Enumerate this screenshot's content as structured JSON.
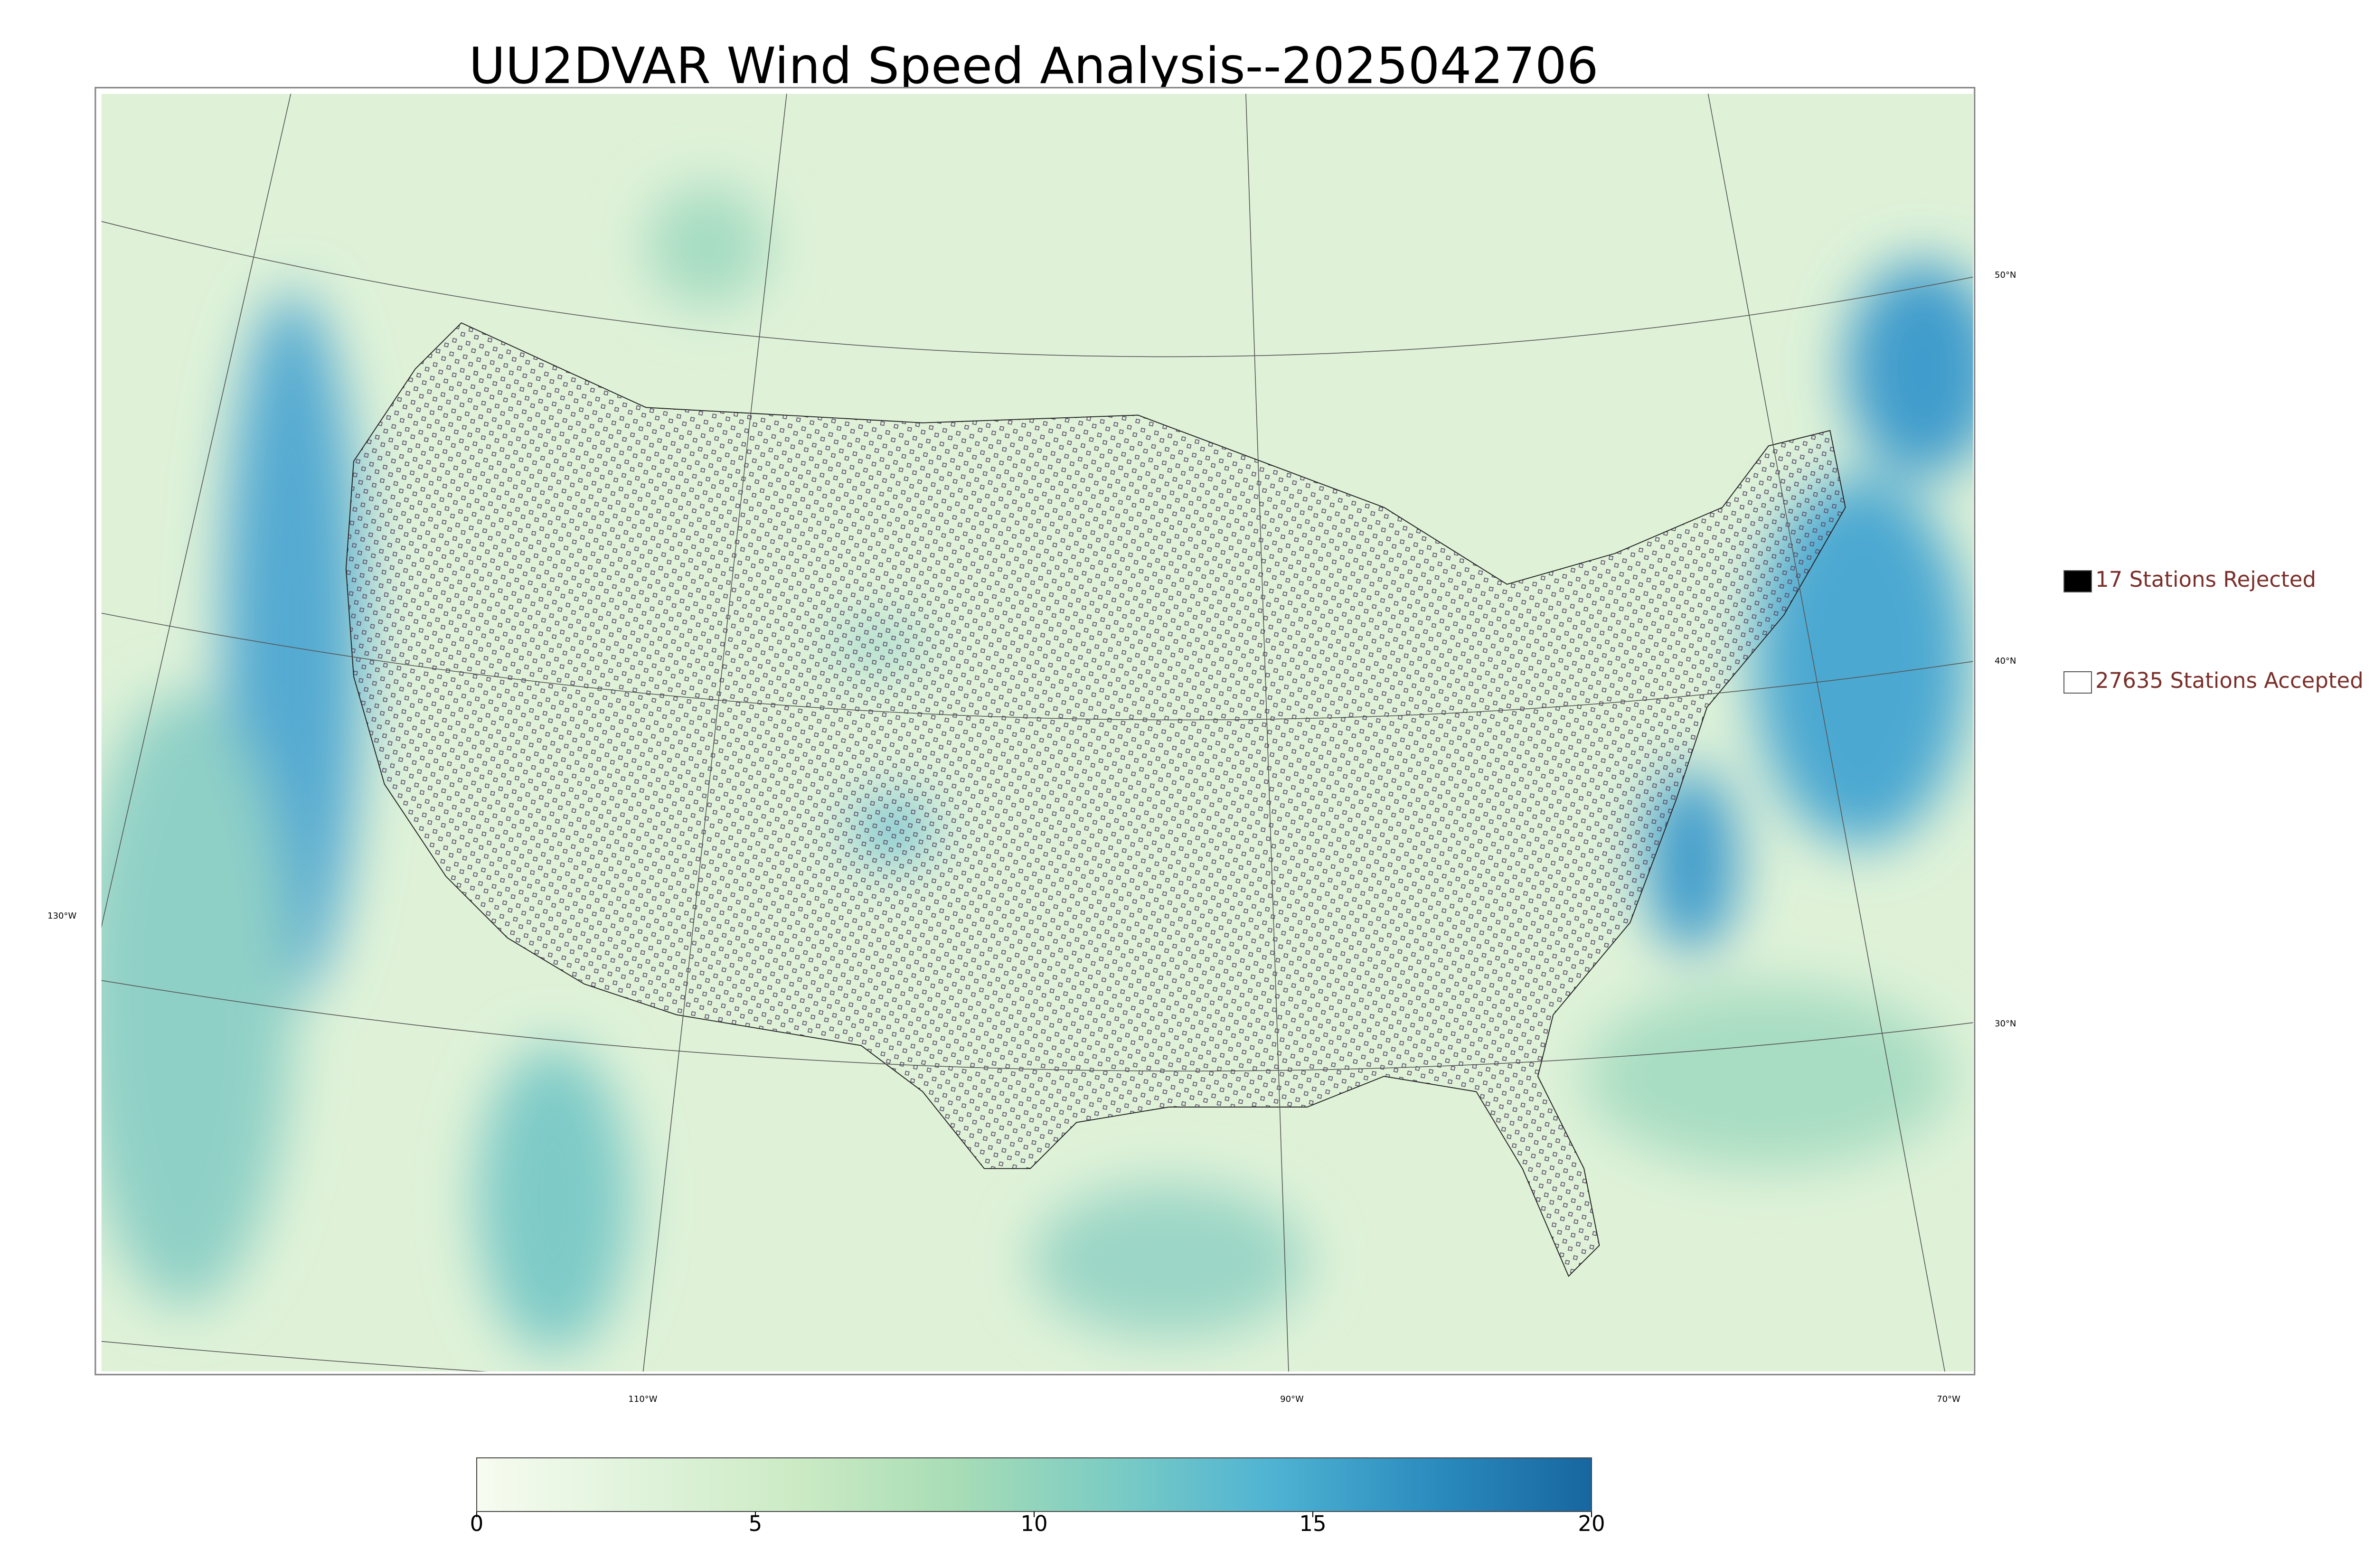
{
  "title": "UU2DVAR Wind Speed Analysis--2025042706",
  "legend": [
    {
      "label": "17 Stations Rejected",
      "color": "#000000"
    },
    {
      "label": "27635 Stations Accepted",
      "color": "#ffffff"
    }
  ],
  "map": {
    "lat_labels": [
      "50°N",
      "40°N",
      "30°N"
    ],
    "lon_labels": [
      "130°W",
      "110°W",
      "90°W",
      "70°W"
    ]
  },
  "colorbar": {
    "lim": [
      0,
      20
    ],
    "ticks": [
      0,
      5,
      10,
      15,
      20
    ],
    "colors": [
      "#f7fcf0",
      "#e0f3db",
      "#ccebc5",
      "#a8ddb5",
      "#7bccc4",
      "#4eb3d3",
      "#2b8cbe",
      "#1766a0"
    ]
  }
}
